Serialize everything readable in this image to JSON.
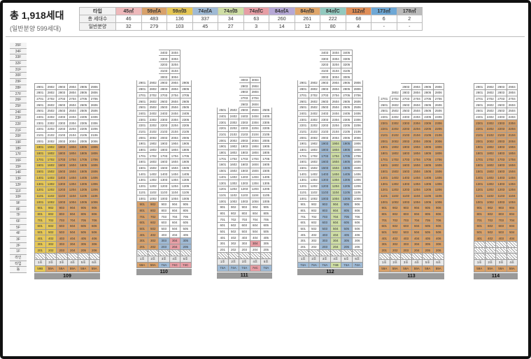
{
  "header": {
    "title": "총 1,918세대",
    "subtitle": "(일반분양 599세대)"
  },
  "summary": {
    "row_labels": [
      "타입",
      "총 세대수",
      "일반분양"
    ],
    "types": [
      {
        "name": "45㎡",
        "total": "46",
        "general": "32",
        "color": "#eeb9bb"
      },
      {
        "name": "59㎡A",
        "total": "483",
        "general": "279",
        "color": "#d8a16a"
      },
      {
        "name": "59㎡B",
        "total": "136",
        "general": "103",
        "color": "#e6c756"
      },
      {
        "name": "74㎡A",
        "total": "337",
        "general": "45",
        "color": "#9fbad5"
      },
      {
        "name": "74㎡B",
        "total": "34",
        "general": "27",
        "color": "#cfdea5"
      },
      {
        "name": "74㎡C",
        "total": "63",
        "general": "3",
        "color": "#e79ea5"
      },
      {
        "name": "84㎡A",
        "total": "260",
        "general": "14",
        "color": "#b6a8d6"
      },
      {
        "name": "84㎡B",
        "total": "261",
        "general": "12",
        "color": "#e0a66a"
      },
      {
        "name": "84㎡C",
        "total": "222",
        "general": "80",
        "color": "#92c9bf"
      },
      {
        "name": "112㎡",
        "total": "68",
        "general": "4",
        "color": "#e08e58"
      },
      {
        "name": "173㎡",
        "total": "6",
        "general": "-",
        "color": "#6ea8d6"
      },
      {
        "name": "178㎡",
        "total": "2",
        "general": "-",
        "color": "#bbbbbb"
      }
    ]
  },
  "floor_labels": [
    "35F",
    "34F",
    "33F",
    "32F",
    "31F",
    "30F",
    "29F",
    "28F",
    "27F",
    "26F",
    "25F",
    "24F",
    "23F",
    "22F",
    "21F",
    "20F",
    "19F",
    "18F",
    "17F",
    "16F",
    "15F",
    "14F",
    "13F",
    "12F",
    "11F",
    "10F",
    "9F",
    "8F",
    "7F",
    "6F",
    "5F",
    "4F",
    "3F",
    "2F",
    "1F",
    "라인",
    "타입",
    "동"
  ],
  "buildings": [
    {
      "name": "109",
      "top": 29,
      "bottom": 2,
      "lines": [
        "1호",
        "2호",
        "3호",
        "4호",
        "5호",
        "6호"
      ],
      "types": [
        "59B",
        "59A",
        "59A",
        "59A",
        "59A",
        "59A"
      ],
      "tops": [
        29,
        29,
        29,
        29,
        29,
        29
      ],
      "colors": [
        "c59B",
        "c59B",
        "c59A",
        "c59A",
        "c59A",
        "c59A"
      ],
      "white_from": 20
    },
    {
      "name": "110",
      "top": 34,
      "bottom": 2,
      "lines": [
        "1호",
        "2호",
        "3호",
        "4호",
        "5호"
      ],
      "types": [
        "59A",
        "59A",
        "74A",
        "74C",
        "74C"
      ],
      "tops": [
        29,
        29,
        34,
        34,
        29
      ],
      "colors": [
        "c59A",
        "c59A",
        "",
        "",
        ""
      ],
      "white_from": 10
    },
    {
      "name": "111",
      "top": 30,
      "bottom": 2,
      "lines": [
        "1호",
        "2호",
        "3호",
        "4호",
        "5호"
      ],
      "types": [
        "74A",
        "74A",
        "74A",
        "74C",
        "74A"
      ],
      "tops": [
        25,
        25,
        30,
        30,
        25
      ],
      "colors": [
        "",
        "",
        "",
        "",
        ""
      ],
      "white_from": 4
    },
    {
      "name": "112",
      "top": 34,
      "bottom": 2,
      "lines": [
        "1호",
        "2호",
        "3호",
        "4호",
        "5호",
        "6호"
      ],
      "types": [
        "74A",
        "74A",
        "74A",
        "74B",
        "74A",
        "74A"
      ],
      "tops": [
        29,
        29,
        34,
        34,
        34,
        29
      ],
      "colors": [
        "",
        "",
        "c74A",
        "c74B",
        "c74A",
        ""
      ],
      "white_from": 20
    },
    {
      "name": "113",
      "top": 29,
      "bottom": 2,
      "lines": [
        "1호",
        "2호",
        "3호",
        "4호",
        "5호",
        "6호"
      ],
      "types": [
        "59A",
        "59A",
        "59A",
        "59A",
        "59A",
        "59A"
      ],
      "tops": [
        27,
        28,
        29,
        29,
        29,
        29
      ],
      "colors": [
        "c59A",
        "c59A",
        "c59A",
        "c59A",
        "c59A",
        "c59A"
      ],
      "white_from": 24
    },
    {
      "name": "114",
      "top": 29,
      "bottom": 4,
      "lines": [
        "1호",
        "2호",
        "3호",
        "4호"
      ],
      "types": [
        "59A",
        "59A",
        "59A",
        "59A"
      ],
      "tops": [
        29,
        29,
        29,
        29
      ],
      "colors": [
        "c59A",
        "c59A",
        "c59A",
        "c59A"
      ],
      "white_from": 24
    }
  ]
}
